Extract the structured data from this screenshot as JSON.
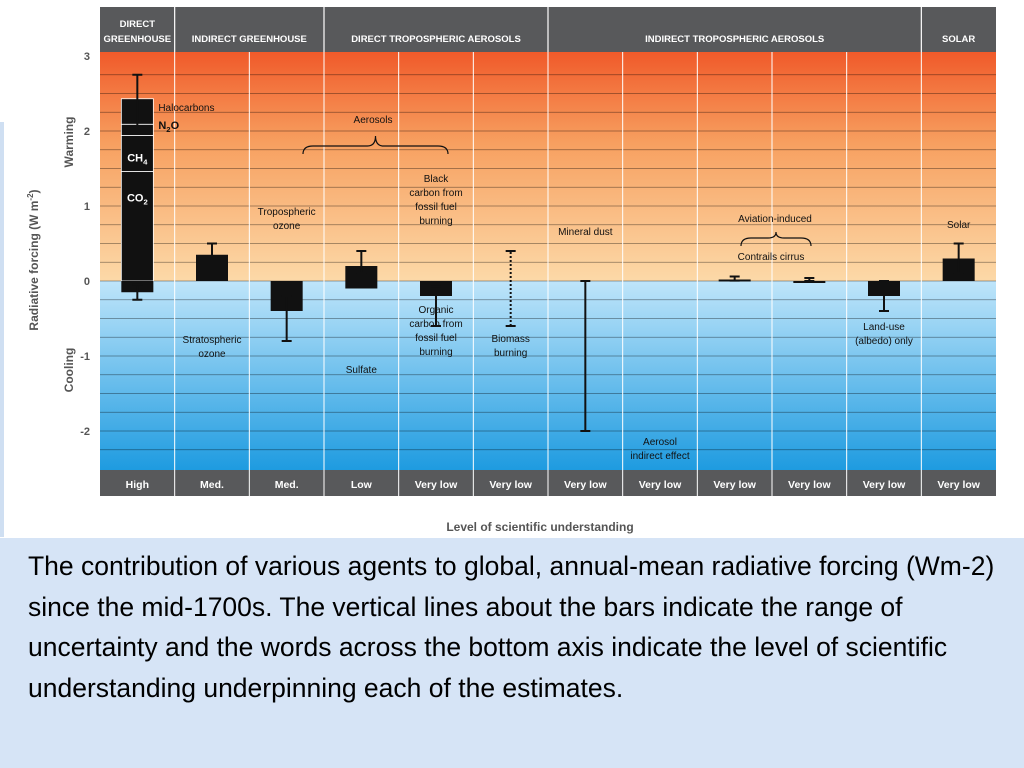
{
  "chart_data": {
    "type": "bar",
    "title": "",
    "ylabel": "Radiative forcing (W m-2)",
    "ylabel_main": "Radiative forcing (W m",
    "ylabel_sup": "-2",
    "ylabel_close": ")",
    "xlabel": "Level of scientific understanding",
    "ylim": [
      -2.5,
      3.0
    ],
    "yticks": [
      {
        "value": 3,
        "label": "3"
      },
      {
        "value": 2,
        "label": "2"
      },
      {
        "value": 1,
        "label": "1"
      },
      {
        "value": 0,
        "label": "0"
      },
      {
        "value": -1,
        "label": "-1"
      },
      {
        "value": -2,
        "label": "-2"
      }
    ],
    "side_labels": {
      "warming": "Warming",
      "cooling": "Cooling"
    },
    "groups": [
      {
        "label1": "DIRECT",
        "label2": "GREENHOUSE",
        "from": 0,
        "to": 0
      },
      {
        "label1": "INDIRECT GREENHOUSE",
        "label2": "",
        "from": 1,
        "to": 2
      },
      {
        "label1": "DIRECT TROPOSPHERIC AEROSOLS",
        "label2": "",
        "from": 3,
        "to": 5
      },
      {
        "label1": "INDIRECT TROPOSPHERIC AEROSOLS",
        "label2": "",
        "from": 6,
        "to": 10
      },
      {
        "label1": "SOLAR",
        "label2": "",
        "from": 11,
        "to": 11
      }
    ],
    "ghg_stack": [
      {
        "label": "CO",
        "sub": "2",
        "value": 1.46
      },
      {
        "label": "CH",
        "sub": "4",
        "value": 0.48
      },
      {
        "label": "N",
        "sub": "2",
        "post": "O",
        "value": 0.15
      },
      {
        "label": "Halocarbons",
        "sub": "",
        "post": "",
        "value": 0.34
      }
    ],
    "ghg_total": 2.43,
    "ghg_range": [
      2.06,
      2.75
    ],
    "bars": [
      {
        "column": 1,
        "value": -0.15,
        "range": [
          -0.25,
          -0.05
        ]
      },
      {
        "column": 2,
        "value": 0.35,
        "range": [
          0.2,
          0.5
        ]
      },
      {
        "column": 3,
        "value": -0.4,
        "range": [
          -0.8,
          -0.2
        ]
      },
      {
        "column": 4,
        "value": 0.2,
        "range": [
          0.1,
          0.4
        ]
      },
      {
        "column": 4,
        "value": -0.1,
        "range": null
      },
      {
        "column": 5,
        "value": -0.2,
        "range": [
          -0.6,
          -0.07
        ]
      },
      {
        "column": 9,
        "value": 0.02,
        "range": [
          0.005,
          0.06
        ]
      },
      {
        "column": 10,
        "value": 0.0,
        "range": [
          0.0,
          0.04
        ]
      },
      {
        "column": 11,
        "value": -0.2,
        "range": [
          -0.4,
          -0.0
        ]
      },
      {
        "column": 12,
        "value": 0.3,
        "range": [
          0.1,
          0.5
        ]
      }
    ],
    "range_only": [
      {
        "column": 6,
        "range": [
          -0.6,
          0.4
        ],
        "style": "dotted"
      },
      {
        "column": 7,
        "range": [
          -2.0,
          0.0
        ],
        "style": "solid"
      }
    ],
    "annotations": [
      {
        "id": "stratospheric-ozone",
        "lines": [
          "Stratospheric",
          "ozone"
        ]
      },
      {
        "id": "tropospheric-ozone",
        "lines": [
          "Tropospheric",
          "ozone"
        ]
      },
      {
        "id": "aerosols",
        "lines": [
          "Aerosols"
        ]
      },
      {
        "id": "sulfate",
        "lines": [
          "Sulfate"
        ]
      },
      {
        "id": "black-carbon",
        "lines": [
          "Black",
          "carbon from",
          "fossil fuel",
          "burning"
        ]
      },
      {
        "id": "organic-carbon",
        "lines": [
          "Organic",
          "carbon from",
          "fossil fuel",
          "burning"
        ]
      },
      {
        "id": "biomass-burning",
        "lines": [
          "Biomass",
          "burning"
        ]
      },
      {
        "id": "mineral-dust",
        "lines": [
          "Mineral dust"
        ]
      },
      {
        "id": "aerosol-indirect",
        "lines": [
          "Aerosol",
          "indirect effect"
        ]
      },
      {
        "id": "aviation-induced",
        "lines": [
          "Aviation-induced"
        ]
      },
      {
        "id": "contrails-cirrus",
        "lines": [
          "Contrails cirrus"
        ]
      },
      {
        "id": "land-use",
        "lines": [
          "Land-use",
          "(albedo) only"
        ]
      },
      {
        "id": "solar",
        "lines": [
          "Solar"
        ]
      }
    ],
    "understanding": [
      "High",
      "Med.",
      "Med.",
      "Low",
      "Very low",
      "Very low",
      "Very low",
      "Very low",
      "Very low",
      "Very low",
      "Very low",
      "Very low"
    ],
    "colors": {
      "warm_top": "#f05a2a",
      "warm_mid": "#f7a060",
      "warm_bottom": "#fcd9a8",
      "cool_top": "#bfe5fa",
      "cool_bottom": "#1e9be0",
      "header_bg": "#58595b",
      "bar": "#111111"
    }
  },
  "caption": "The contribution of various agents to global, annual-mean radiative forcing (Wm-2) since the mid-1700s. The vertical lines about the bars indicate the range of uncertainty and the words across the bottom axis indicate the level of scientific understanding underpinning each of the estimates."
}
